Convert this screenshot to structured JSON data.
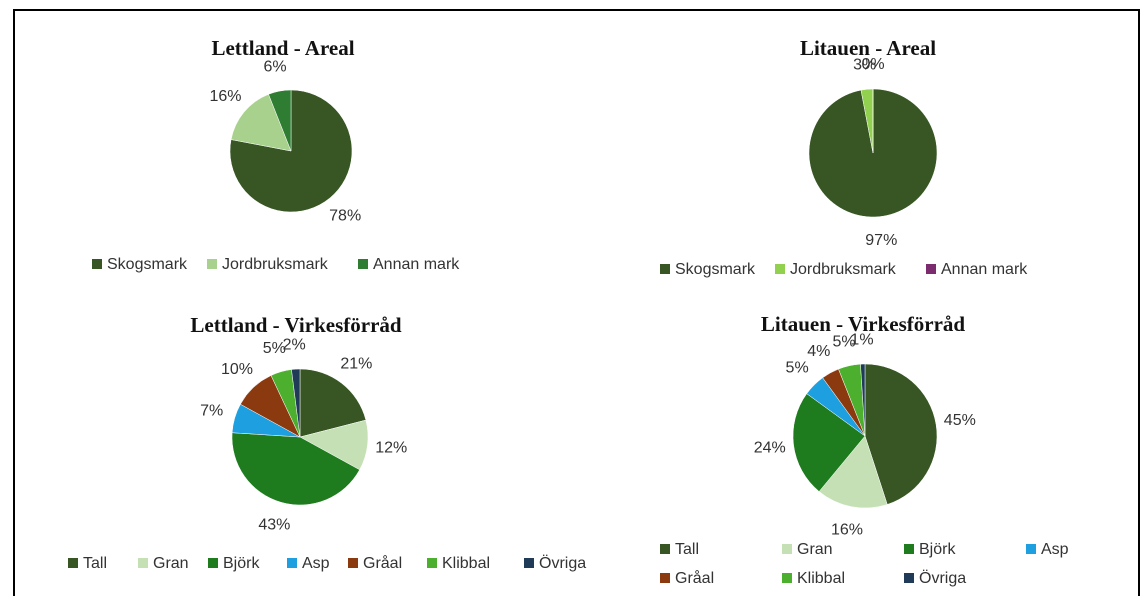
{
  "chart_data": [
    {
      "type": "pie",
      "title": "Lettland - Areal",
      "categories": [
        "Skogsmark",
        "Jordbruksmark",
        "Annan mark"
      ],
      "values": [
        78,
        16,
        6
      ],
      "value_labels": [
        "78%",
        "16%",
        "6%"
      ],
      "colors": [
        "#375623",
        "#a9d18e",
        "#2e7d32"
      ]
    },
    {
      "type": "pie",
      "title": "Litauen - Areal",
      "categories": [
        "Skogsmark",
        "Jordbruksmark",
        "Annan mark"
      ],
      "values": [
        97,
        3,
        0
      ],
      "value_labels": [
        "97%",
        "3%",
        "0%"
      ],
      "colors": [
        "#375623",
        "#92d050",
        "#7b2c6e"
      ]
    },
    {
      "type": "pie",
      "title": "Lettland - Virkesförråd",
      "categories": [
        "Tall",
        "Gran",
        "Björk",
        "Asp",
        "Gråal",
        "Klibbal",
        "Övriga"
      ],
      "values": [
        21,
        12,
        43,
        7,
        10,
        5,
        2
      ],
      "value_labels": [
        "21%",
        "12%",
        "43%",
        "7%",
        "10%",
        "5%",
        "2%"
      ],
      "colors": [
        "#375623",
        "#c5e0b4",
        "#1e7b1e",
        "#1ea0e0",
        "#8b3a0f",
        "#4caf2e",
        "#1f3b57"
      ]
    },
    {
      "type": "pie",
      "title": "Litauen - Virkesförråd",
      "categories": [
        "Tall",
        "Gran",
        "Björk",
        "Asp",
        "Gråal",
        "Klibbal",
        "Övriga"
      ],
      "values": [
        45,
        16,
        24,
        5,
        4,
        5,
        1
      ],
      "value_labels": [
        "45%",
        "16%",
        "24%",
        "5%",
        "4%",
        "5%",
        "1%"
      ],
      "colors": [
        "#375623",
        "#c5e0b4",
        "#1e7b1e",
        "#1ea0e0",
        "#8b3a0f",
        "#4caf2e",
        "#1f3b57"
      ]
    }
  ]
}
